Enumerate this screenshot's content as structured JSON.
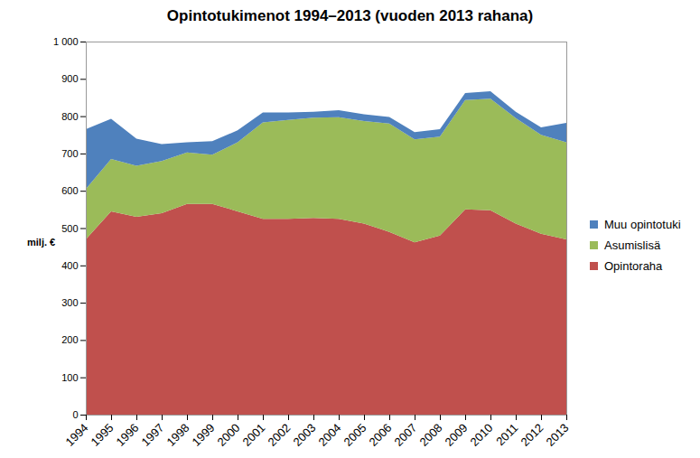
{
  "chart_data": {
    "type": "area",
    "title": "Opintotukimenot 1994–2013 (vuoden 2013 rahana)",
    "y_label": "milj. €",
    "stacked": true,
    "legend": "right",
    "grid": false,
    "x": [
      1994,
      1995,
      1996,
      1997,
      1998,
      1999,
      2000,
      2001,
      2002,
      2003,
      2004,
      2005,
      2006,
      2007,
      2008,
      2009,
      2010,
      2011,
      2012,
      2013
    ],
    "xlim": [
      1994,
      2013
    ],
    "xticks": [
      1994,
      1995,
      1996,
      1997,
      1998,
      1999,
      2000,
      2001,
      2002,
      2003,
      2004,
      2005,
      2006,
      2007,
      2008,
      2009,
      2010,
      2011,
      2012,
      2013
    ],
    "ylim": [
      0,
      1000
    ],
    "yticks": [
      0,
      100,
      200,
      300,
      400,
      500,
      600,
      700,
      800,
      900,
      {
        "value": 1000,
        "label": "1 000"
      }
    ],
    "series": [
      {
        "name": "Opintoraha",
        "color": "#c0504d",
        "values": [
          470,
          545,
          530,
          540,
          565,
          565,
          545,
          525,
          525,
          527,
          525,
          512,
          490,
          462,
          480,
          550,
          548,
          512,
          485,
          470
        ]
      },
      {
        "name": "Asumislisä",
        "color": "#9bbb59",
        "values": [
          135,
          140,
          137,
          140,
          138,
          132,
          185,
          258,
          265,
          269,
          272,
          275,
          290,
          276,
          265,
          293,
          299,
          283,
          265,
          260
        ]
      },
      {
        "name": "Muu opintotuki",
        "color": "#4f81bd",
        "values": [
          160,
          108,
          73,
          45,
          27,
          36,
          32,
          27,
          20,
          16,
          19,
          18,
          18,
          19,
          20,
          19,
          20,
          17,
          20,
          52
        ]
      }
    ]
  }
}
